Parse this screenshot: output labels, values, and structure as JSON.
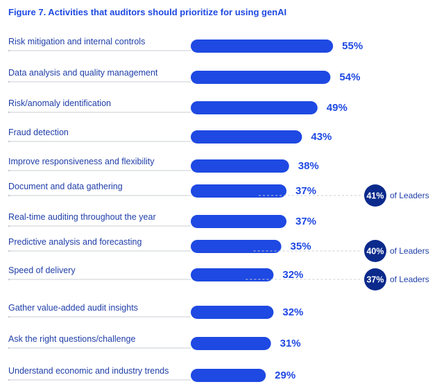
{
  "chart_data": {
    "type": "bar",
    "orientation": "horizontal",
    "title": "Figure 7. Activities that auditors should prioritize for using genAI",
    "unit": "%",
    "categories": [
      "Risk mitigation and internal controls",
      "Data analysis and quality management",
      "Risk/anomaly identification",
      "Fraud detection",
      "Improve responsiveness and flexibility",
      "Document and data gathering",
      "Real-time auditing throughout the year",
      "Predictive analysis and forecasting",
      "Speed of delivery",
      "Gather value-added audit insights",
      "Ask the right questions/challenge",
      "Understand economic and industry trends"
    ],
    "values": [
      55,
      54,
      49,
      43,
      38,
      37,
      37,
      35,
      32,
      32,
      31,
      29
    ],
    "value_labels": [
      "55%",
      "54%",
      "49%",
      "43%",
      "38%",
      "37%",
      "37%",
      "35%",
      "32%",
      "32%",
      "31%",
      "29%"
    ],
    "leaders_callouts": [
      {
        "category": "Document and data gathering",
        "value": 41,
        "label": "41%",
        "suffix": "of Leaders"
      },
      {
        "category": "Predictive analysis and forecasting",
        "value": 40,
        "label": "40%",
        "suffix": "of Leaders"
      },
      {
        "category": "Speed of delivery",
        "value": 37,
        "label": "37%",
        "suffix": "of Leaders"
      }
    ],
    "colors": {
      "bar": "#1e49e2",
      "label": "#1f3ea8",
      "value": "#1e49e2",
      "badge": "#0b2a8c",
      "rule": "#c9ccd3"
    }
  }
}
